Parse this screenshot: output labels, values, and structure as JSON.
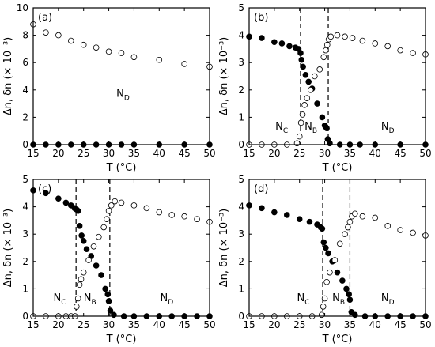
{
  "chart_data": [
    {
      "panel": "(a)",
      "type": "scatter",
      "xlabel": "T (°C)",
      "ylabel": "Δn, δn (× 10⁻³)",
      "xlim": [
        15,
        50
      ],
      "ylim": [
        0,
        10
      ],
      "xticks": [
        15,
        20,
        25,
        30,
        35,
        40,
        45,
        50
      ],
      "yticks": [
        0,
        2,
        4,
        6,
        8,
        10
      ],
      "phase_labels": [
        {
          "main": "N",
          "sub": "D",
          "x": 31.5,
          "y": 3.5
        }
      ],
      "transitions": [],
      "series": [
        {
          "style": "filled",
          "x": [
            15,
            17.5,
            20,
            22.5,
            25,
            27.5,
            30,
            32.5,
            35,
            40,
            45,
            50
          ],
          "y": [
            0,
            0,
            0,
            0,
            0,
            0,
            0,
            0,
            0,
            0,
            0,
            0
          ]
        },
        {
          "style": "open",
          "x": [
            15,
            17.5,
            20,
            22.5,
            25,
            27.5,
            30,
            32.5,
            35,
            40,
            45,
            50
          ],
          "y": [
            8.8,
            8.2,
            8.0,
            7.6,
            7.3,
            7.1,
            6.8,
            6.7,
            6.4,
            6.2,
            5.9,
            5.7
          ]
        }
      ]
    },
    {
      "panel": "(b)",
      "type": "scatter",
      "xlabel": "T (°C)",
      "ylabel": "Δn, δn (× 10⁻³)",
      "xlim": [
        15,
        50
      ],
      "ylim": [
        0,
        5
      ],
      "xticks": [
        15,
        20,
        25,
        30,
        35,
        40,
        45,
        50
      ],
      "yticks": [
        0,
        1,
        2,
        3,
        4,
        5
      ],
      "phase_labels": [
        {
          "main": "N",
          "sub": "C",
          "x": 20.2,
          "y": 0.55
        },
        {
          "main": "N",
          "sub": "B",
          "x": 26.0,
          "y": 0.55
        },
        {
          "main": "N",
          "sub": "D",
          "x": 41.2,
          "y": 0.55
        }
      ],
      "transitions": [
        25.2,
        30.7
      ],
      "series": [
        {
          "style": "filled",
          "x": [
            15,
            17.5,
            20,
            21.5,
            23,
            24.2,
            24.8,
            25.2,
            25.4,
            25.7,
            26.2,
            26.8,
            27.5,
            28.5,
            29.5,
            30.0,
            30.2,
            30.4,
            30.6,
            31,
            33,
            35,
            37,
            40,
            45,
            50
          ],
          "y": [
            3.95,
            3.9,
            3.75,
            3.7,
            3.6,
            3.55,
            3.5,
            3.35,
            3.1,
            2.85,
            2.55,
            2.3,
            2.05,
            1.5,
            1.0,
            0.7,
            0.65,
            0.6,
            0.2,
            0.05,
            0,
            0,
            0,
            0,
            0,
            0
          ]
        },
        {
          "style": "open",
          "x": [
            15,
            17.5,
            20,
            22.5,
            24.5,
            25.0,
            25.3,
            25.6,
            26.0,
            26.5,
            27.2,
            28.0,
            29.0,
            29.8,
            30.2,
            30.5,
            30.8,
            31.2,
            32.5,
            34,
            35.5,
            37.5,
            40,
            42.5,
            45,
            47.5,
            50
          ],
          "y": [
            0,
            0,
            0,
            0,
            0.05,
            0.3,
            0.8,
            1.1,
            1.45,
            1.7,
            2.0,
            2.5,
            2.75,
            3.2,
            3.45,
            3.65,
            3.85,
            3.95,
            4.0,
            3.95,
            3.9,
            3.8,
            3.7,
            3.6,
            3.45,
            3.35,
            3.3
          ]
        }
      ]
    },
    {
      "panel": "(c)",
      "type": "scatter",
      "xlabel": "T (°C)",
      "ylabel": "Δn, δn (× 10⁻³)",
      "xlim": [
        15,
        50
      ],
      "ylim": [
        0,
        5
      ],
      "xticks": [
        15,
        20,
        25,
        30,
        35,
        40,
        45,
        50
      ],
      "yticks": [
        0,
        1,
        2,
        3,
        4,
        5
      ],
      "phase_labels": [
        {
          "main": "N",
          "sub": "C",
          "x": 19.0,
          "y": 0.55
        },
        {
          "main": "N",
          "sub": "B",
          "x": 25.0,
          "y": 0.55
        },
        {
          "main": "N",
          "sub": "D",
          "x": 40.2,
          "y": 0.55
        }
      ],
      "transitions": [
        23.5,
        30.2
      ],
      "series": [
        {
          "style": "filled",
          "x": [
            15,
            17.5,
            20,
            21.5,
            22.5,
            23.2,
            23.6,
            23.9,
            24.2,
            24.6,
            25.0,
            25.6,
            26.5,
            27.5,
            28.5,
            29.3,
            29.8,
            30.0,
            30.3,
            31,
            33,
            35,
            37.5,
            40,
            42.5,
            45,
            47.5,
            50
          ],
          "y": [
            4.6,
            4.5,
            4.3,
            4.15,
            4.05,
            3.95,
            3.9,
            3.85,
            3.3,
            2.95,
            2.75,
            2.45,
            2.2,
            1.85,
            1.5,
            1.0,
            0.8,
            0.55,
            0.2,
            0.05,
            0,
            0,
            0,
            0,
            0,
            0,
            0,
            0
          ]
        },
        {
          "style": "open",
          "x": [
            15,
            17.5,
            20,
            21.5,
            22.5,
            23.3,
            23.6,
            23.9,
            24.2,
            24.5,
            25.0,
            26.0,
            27.0,
            28.0,
            29.0,
            29.6,
            30.0,
            30.5,
            31.2,
            32.5,
            35,
            37.5,
            40,
            42.5,
            45,
            47.5,
            50
          ],
          "y": [
            0,
            0,
            0,
            0,
            0,
            0,
            0.35,
            0.65,
            1.15,
            1.35,
            1.6,
            2.05,
            2.55,
            2.9,
            3.25,
            3.55,
            3.85,
            4.05,
            4.2,
            4.15,
            4.05,
            3.95,
            3.8,
            3.7,
            3.65,
            3.55,
            3.45
          ]
        }
      ]
    },
    {
      "panel": "(d)",
      "type": "scatter",
      "xlabel": "T (°C)",
      "ylabel": "Δn, δn (× 10⁻³)",
      "xlim": [
        15,
        50
      ],
      "ylim": [
        0,
        5
      ],
      "xticks": [
        15,
        20,
        25,
        30,
        35,
        40,
        45,
        50
      ],
      "yticks": [
        0,
        1,
        2,
        3,
        4,
        5
      ],
      "phase_labels": [
        {
          "main": "N",
          "sub": "C",
          "x": 24.5,
          "y": 0.55
        },
        {
          "main": "N",
          "sub": "B",
          "x": 31.5,
          "y": 0.55
        },
        {
          "main": "N",
          "sub": "D",
          "x": 41.2,
          "y": 0.55
        }
      ],
      "transitions": [
        29.6,
        35.0
      ],
      "series": [
        {
          "style": "filled",
          "x": [
            15,
            17.5,
            20,
            22.5,
            25,
            27,
            28.5,
            29.2,
            29.5,
            29.8,
            30.2,
            30.7,
            31.5,
            32.5,
            33.5,
            34.3,
            34.8,
            35.0,
            35.3,
            36,
            38,
            40,
            42.5,
            45,
            47.5,
            50
          ],
          "y": [
            4.05,
            3.95,
            3.8,
            3.7,
            3.55,
            3.45,
            3.35,
            3.25,
            3.2,
            2.7,
            2.5,
            2.3,
            2.0,
            1.6,
            1.3,
            1.0,
            0.8,
            0.6,
            0.15,
            0.05,
            0,
            0,
            0,
            0,
            0,
            0
          ]
        },
        {
          "style": "open",
          "x": [
            15,
            17.5,
            20,
            22.5,
            25,
            27.5,
            29.4,
            29.7,
            30.0,
            30.4,
            31.0,
            32.0,
            33.0,
            34.0,
            34.6,
            35.0,
            35.4,
            36.0,
            37.5,
            40,
            42.5,
            45,
            47.5,
            50
          ],
          "y": [
            0,
            0,
            0,
            0,
            0,
            0,
            0.05,
            0.35,
            0.65,
            1.25,
            1.6,
            2.05,
            2.65,
            3.0,
            3.25,
            3.45,
            3.65,
            3.75,
            3.65,
            3.6,
            3.3,
            3.15,
            3.05,
            2.95
          ]
        }
      ]
    }
  ]
}
